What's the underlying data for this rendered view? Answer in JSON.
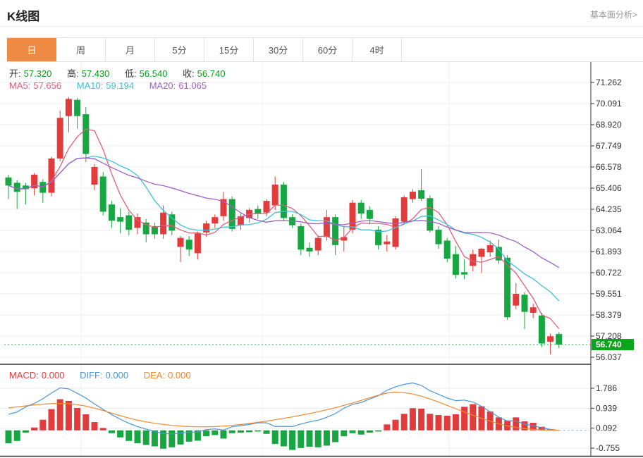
{
  "header": {
    "title": "K线图",
    "analysis_link": "基本面分析>"
  },
  "tabs": [
    {
      "label": "日",
      "active": true
    },
    {
      "label": "周",
      "active": false
    },
    {
      "label": "月",
      "active": false
    },
    {
      "label": "5分",
      "active": false
    },
    {
      "label": "15分",
      "active": false
    },
    {
      "label": "30分",
      "active": false
    },
    {
      "label": "60分",
      "active": false
    },
    {
      "label": "4时",
      "active": false
    }
  ],
  "legend": {
    "open_label": "开:",
    "open_value": "57.320",
    "high_label": "高:",
    "high_value": "57.430",
    "low_label": "低:",
    "low_value": "56.540",
    "close_label": "收:",
    "close_value": "56.740",
    "ma5_label": "MA5:",
    "ma5_value": "57.656",
    "ma10_label": "MA10:",
    "ma10_value": "59.194",
    "ma20_label": "MA20:",
    "ma20_value": "61.065"
  },
  "macd_legend": {
    "macd_label": "MACD:",
    "macd_value": "0.000",
    "diff_label": "DIFF:",
    "diff_value": "0.000",
    "dea_label": "DEA:",
    "dea_value": "0.000"
  },
  "price_marker": {
    "label": "56.740",
    "value": 56.74
  },
  "colors": {
    "up": "#e23b3b",
    "down": "#18a642",
    "ma5": "#e25d7e",
    "ma10": "#3ec0d8",
    "ma20": "#a05ec2",
    "diff": "#4a96d9",
    "dea": "#f0882e",
    "accent": "#ef8a45",
    "marker_bg": "#0ba51b",
    "dotted_line": "#55c06e",
    "value_green": "#0a9e14",
    "grid": "#ececec",
    "vgrid": "#f2f2f2",
    "axis": "#333333",
    "tick_text": "#333333"
  },
  "chart_data": {
    "type": "candlestick",
    "title": "K线图 日K",
    "legend_position": "top-left",
    "grid": true,
    "main_pane": {
      "ylabel": "price",
      "yticks": [
        71.262,
        70.091,
        68.92,
        67.749,
        66.578,
        65.406,
        64.235,
        63.064,
        61.893,
        60.722,
        59.551,
        58.379,
        57.208,
        56.037
      ],
      "ma_periods": [
        5,
        10,
        20
      ],
      "last_close": 56.74,
      "candles_ohlc": [
        [
          66.0,
          66.15,
          64.8,
          65.55
        ],
        [
          65.7,
          65.85,
          64.25,
          65.2
        ],
        [
          65.55,
          65.7,
          64.5,
          65.35
        ],
        [
          65.4,
          66.25,
          65.0,
          66.15
        ],
        [
          65.75,
          65.9,
          64.6,
          65.15
        ],
        [
          65.15,
          67.15,
          64.95,
          67.05
        ],
        [
          67.05,
          69.7,
          66.9,
          69.3
        ],
        [
          69.4,
          70.45,
          68.5,
          70.35
        ],
        [
          70.3,
          70.4,
          68.7,
          69.4
        ],
        [
          69.5,
          69.9,
          66.85,
          67.3
        ],
        [
          65.6,
          66.75,
          65.3,
          66.58
        ],
        [
          66.05,
          66.3,
          63.9,
          64.1
        ],
        [
          64.5,
          64.7,
          63.2,
          63.6
        ],
        [
          63.8,
          64.3,
          62.9,
          63.55
        ],
        [
          63.9,
          64.1,
          62.8,
          63.1
        ],
        [
          63.2,
          64.0,
          62.85,
          63.8
        ],
        [
          63.5,
          63.7,
          62.4,
          62.85
        ],
        [
          63.3,
          63.5,
          62.6,
          62.85
        ],
        [
          62.85,
          64.45,
          62.6,
          64.05
        ],
        [
          63.95,
          64.1,
          62.8,
          63.05
        ],
        [
          62.15,
          62.75,
          61.3,
          62.65
        ],
        [
          62.55,
          62.75,
          61.65,
          62.0
        ],
        [
          61.8,
          63.0,
          61.45,
          62.9
        ],
        [
          62.95,
          63.6,
          62.7,
          63.45
        ],
        [
          63.45,
          63.95,
          63.2,
          63.8
        ],
        [
          63.85,
          65.2,
          63.6,
          64.8
        ],
        [
          64.8,
          64.95,
          63.0,
          63.15
        ],
        [
          63.35,
          64.0,
          63.1,
          63.85
        ],
        [
          63.75,
          64.3,
          63.5,
          64.2
        ],
        [
          64.25,
          64.45,
          63.7,
          64.0
        ],
        [
          64.05,
          64.8,
          63.85,
          64.7
        ],
        [
          64.45,
          66.05,
          64.2,
          65.6
        ],
        [
          65.6,
          65.75,
          63.6,
          63.75
        ],
        [
          63.8,
          63.95,
          63.2,
          63.35
        ],
        [
          63.3,
          63.45,
          61.7,
          62.0
        ],
        [
          62.1,
          62.4,
          61.6,
          61.9
        ],
        [
          61.95,
          62.8,
          61.7,
          62.65
        ],
        [
          62.7,
          64.2,
          62.5,
          63.8
        ],
        [
          63.8,
          63.95,
          61.7,
          62.25
        ],
        [
          62.5,
          63.3,
          61.9,
          62.7
        ],
        [
          63.1,
          64.75,
          62.9,
          64.6
        ],
        [
          64.6,
          64.75,
          63.7,
          64.0
        ],
        [
          64.2,
          64.4,
          63.4,
          63.7
        ],
        [
          63.1,
          63.3,
          62.0,
          62.25
        ],
        [
          62.3,
          62.8,
          61.9,
          62.45
        ],
        [
          62.15,
          63.85,
          62.0,
          63.73
        ],
        [
          63.55,
          65.0,
          63.4,
          64.9
        ],
        [
          64.8,
          65.35,
          64.6,
          65.21
        ],
        [
          65.29,
          66.46,
          64.7,
          64.82
        ],
        [
          64.85,
          65.0,
          62.95,
          63.05
        ],
        [
          63.1,
          63.3,
          62.05,
          62.3
        ],
        [
          62.5,
          62.65,
          61.3,
          61.5
        ],
        [
          61.75,
          62.2,
          60.4,
          60.6
        ],
        [
          60.75,
          61.45,
          60.35,
          60.62
        ],
        [
          61.1,
          62.0,
          60.8,
          61.75
        ],
        [
          61.6,
          62.1,
          60.7,
          62.05
        ],
        [
          61.85,
          62.5,
          61.6,
          62.25
        ],
        [
          62.15,
          62.55,
          61.2,
          61.4
        ],
        [
          61.55,
          61.7,
          58.1,
          58.25
        ],
        [
          58.9,
          60.15,
          58.7,
          59.55
        ],
        [
          59.5,
          59.65,
          57.6,
          58.55
        ],
        [
          58.5,
          59.0,
          58.2,
          58.8
        ],
        [
          58.35,
          58.5,
          56.6,
          56.8
        ],
        [
          56.9,
          57.35,
          56.2,
          57.2
        ],
        [
          57.32,
          57.43,
          56.54,
          56.74
        ]
      ]
    },
    "macd_pane": {
      "yticks": [
        1.786,
        0.939,
        0.092,
        -0.755
      ],
      "hist": [
        -0.55,
        -0.45,
        -0.1,
        0.12,
        0.45,
        0.9,
        1.32,
        1.25,
        0.95,
        0.68,
        0.35,
        0.1,
        -0.12,
        -0.3,
        -0.45,
        -0.55,
        -0.62,
        -0.68,
        -0.78,
        -0.72,
        -0.6,
        -0.48,
        -0.44,
        -0.25,
        -0.2,
        -0.35,
        -0.12,
        -0.1,
        -0.08,
        -0.05,
        -0.15,
        -0.58,
        -0.68,
        -0.83,
        -0.75,
        -0.7,
        -0.72,
        -0.65,
        -0.5,
        -0.25,
        -0.12,
        -0.18,
        -0.1,
        -0.05,
        0.25,
        0.45,
        0.7,
        0.94,
        0.92,
        0.7,
        0.65,
        0.62,
        0.68,
        1.0,
        1.11,
        1.02,
        0.8,
        0.55,
        0.42,
        0.55,
        0.38,
        0.32,
        0.15,
        0.05,
        0.0
      ],
      "diff": [
        0.68,
        0.78,
        0.99,
        1.14,
        1.34,
        1.58,
        1.8,
        1.76,
        1.57,
        1.37,
        1.12,
        0.89,
        0.67,
        0.47,
        0.3,
        0.16,
        0.05,
        -0.04,
        -0.14,
        -0.15,
        -0.12,
        -0.08,
        -0.07,
        0.03,
        0.06,
        0.01,
        0.15,
        0.2,
        0.25,
        0.32,
        0.32,
        0.16,
        0.17,
        0.16,
        0.27,
        0.36,
        0.43,
        0.55,
        0.71,
        0.94,
        1.1,
        1.18,
        1.33,
        1.47,
        1.7,
        1.85,
        1.95,
        2.01,
        1.91,
        1.68,
        1.53,
        1.37,
        1.26,
        1.28,
        1.2,
        1.02,
        0.79,
        0.56,
        0.4,
        0.4,
        0.26,
        0.2,
        0.1,
        0.04,
        0.0
      ],
      "dea": [
        0.95,
        1.0,
        1.04,
        1.08,
        1.11,
        1.13,
        1.14,
        1.13,
        1.09,
        1.03,
        0.94,
        0.84,
        0.73,
        0.62,
        0.52,
        0.43,
        0.36,
        0.3,
        0.25,
        0.21,
        0.18,
        0.16,
        0.15,
        0.15,
        0.16,
        0.18,
        0.21,
        0.25,
        0.29,
        0.34,
        0.39,
        0.45,
        0.51,
        0.57,
        0.64,
        0.71,
        0.79,
        0.87,
        0.96,
        1.06,
        1.16,
        1.27,
        1.38,
        1.49,
        1.58,
        1.62,
        1.6,
        1.54,
        1.45,
        1.33,
        1.2,
        1.06,
        0.92,
        0.78,
        0.64,
        0.51,
        0.39,
        0.28,
        0.19,
        0.12,
        0.07,
        0.04,
        0.02,
        0.01,
        0.0
      ]
    }
  }
}
